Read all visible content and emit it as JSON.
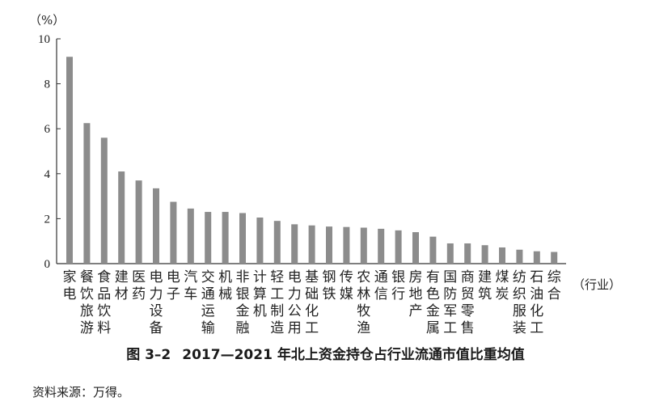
{
  "chart_data": {
    "type": "bar",
    "title": "2017—2021 年北上资金持仓占行业流通市值比重均值",
    "figure_number": "图 3–2",
    "y_unit_label": "（%）",
    "x_unit_label": "（行业）",
    "ylim": [
      0,
      10
    ],
    "yticks": [
      0,
      2,
      4,
      6,
      8,
      10
    ],
    "grid": false,
    "bar_color": "#8c8c8c",
    "categories": [
      "家电",
      "餐饮旅游",
      "食品饮料",
      "建材",
      "医药",
      "电力设备",
      "电子",
      "汽车",
      "交通运输",
      "机械",
      "非银金融",
      "计算机",
      "轻工制造",
      "电力公用",
      "基础化工",
      "钢铁",
      "传媒",
      "农林牧渔",
      "通信",
      "银行",
      "房地产",
      "有色金属",
      "国防军工",
      "商贸零售",
      "建筑",
      "煤炭",
      "纺织服装",
      "石油化工",
      "综合"
    ],
    "values": [
      9.2,
      6.25,
      5.6,
      4.1,
      3.7,
      3.35,
      2.75,
      2.45,
      2.3,
      2.3,
      2.25,
      2.05,
      1.9,
      1.75,
      1.7,
      1.65,
      1.63,
      1.6,
      1.55,
      1.48,
      1.4,
      1.2,
      0.9,
      0.9,
      0.82,
      0.72,
      0.62,
      0.55,
      0.52
    ]
  },
  "source_note": "资料来源：万得。"
}
